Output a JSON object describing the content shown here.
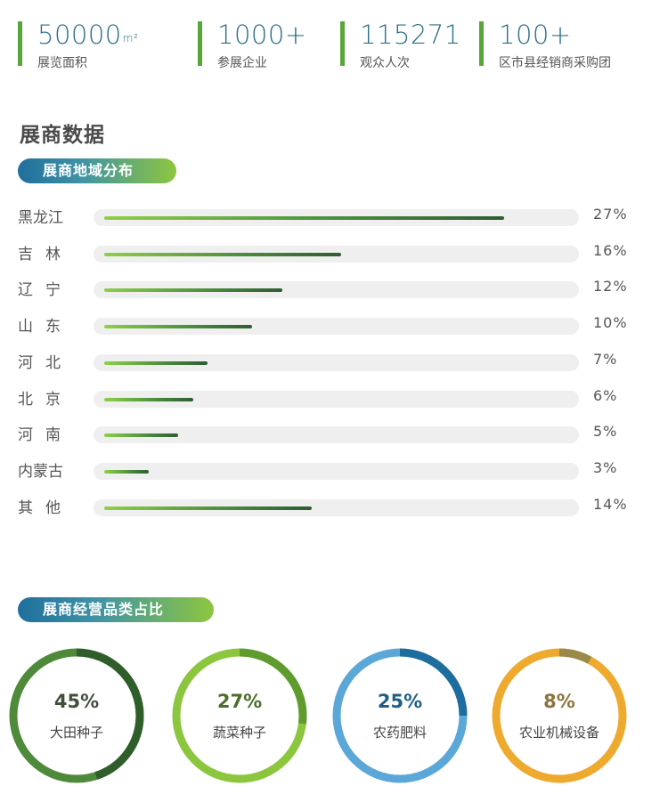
{
  "stats": [
    {
      "value": "50000",
      "unit": "m²",
      "label": "展览面积"
    },
    {
      "value": "1000+",
      "unit": "",
      "label": "参展企业"
    },
    {
      "value": "115271",
      "unit": "",
      "label": "观众人次"
    },
    {
      "value": "100+",
      "unit": "",
      "label": "区市县经销商采购团"
    }
  ],
  "section_title": "展商数据",
  "region_pill": "展商地域分布",
  "category_pill": "展商经营品类占比",
  "colors": {
    "stat_number": "#2b6f8a",
    "stat_bar": "#58a63a",
    "pill_start": "#1f6f9c",
    "pill_end": "#8ec63f",
    "bar_light": "#8dd147",
    "bar_dark": "#2f5d33"
  },
  "chart_data": [
    {
      "type": "bar",
      "orientation": "horizontal",
      "title": "展商地域分布",
      "categories": [
        "黑龙江",
        "吉 林",
        "辽 宁",
        "山 东",
        "河 北",
        "北 京",
        "河 南",
        "内蒙古",
        "其 他"
      ],
      "values": [
        27,
        16,
        12,
        10,
        7,
        6,
        5,
        3,
        14
      ],
      "value_labels": [
        "27%",
        "16%",
        "12%",
        "10%",
        "7%",
        "6%",
        "5%",
        "3%",
        "14%"
      ],
      "unit": "%",
      "xlim": [
        0,
        28.5
      ]
    },
    {
      "type": "pie",
      "style": "rings",
      "title": "展商经营品类占比",
      "categories": [
        "大田种子",
        "蔬菜种子",
        "农药肥料",
        "农业机械设备"
      ],
      "values": [
        45,
        27,
        25,
        8
      ],
      "value_labels": [
        "45%",
        "27%",
        "25%",
        "8%"
      ],
      "colors": [
        "#4f8a3a",
        "#8cc63f",
        "#5ba7d8",
        "#eeaa2e"
      ],
      "accent_colors": [
        "#2f5e2a",
        "#5f9b2e",
        "#1d6d9e",
        "#9a8a4a"
      ],
      "text_colors": [
        "#3f4f3a",
        "#4c6e2a",
        "#1f5f85",
        "#8b7440"
      ]
    }
  ]
}
